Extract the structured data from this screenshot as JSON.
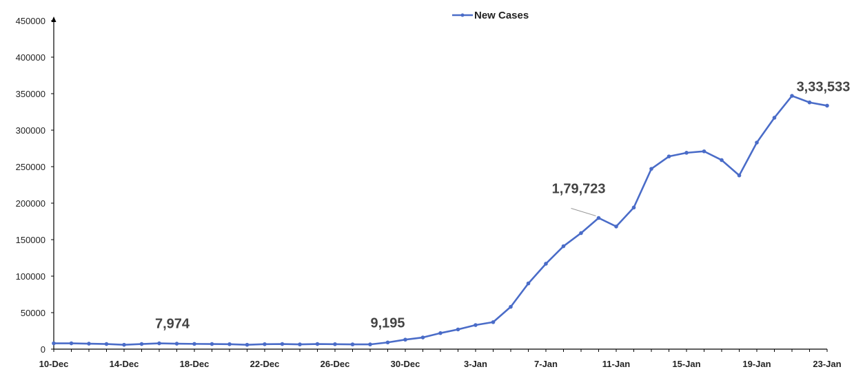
{
  "chart_data": {
    "type": "line",
    "title": "",
    "xlabel": "",
    "ylabel": "",
    "ylim": [
      0,
      450000
    ],
    "yticks": [
      "0",
      "50000",
      "100000",
      "150000",
      "200000",
      "250000",
      "300000",
      "350000",
      "400000",
      "450000"
    ],
    "xtick_labels": [
      "10-Dec",
      "14-Dec",
      "18-Dec",
      "22-Dec",
      "26-Dec",
      "30-Dec",
      "3-Jan",
      "7-Jan",
      "11-Jan",
      "15-Jan",
      "19-Jan",
      "23-Jan"
    ],
    "legend": {
      "position": "top-center",
      "label": "New Cases"
    },
    "grid": false,
    "x": [
      "10-Dec",
      "11-Dec",
      "12-Dec",
      "13-Dec",
      "14-Dec",
      "15-Dec",
      "16-Dec",
      "17-Dec",
      "18-Dec",
      "19-Dec",
      "20-Dec",
      "21-Dec",
      "22-Dec",
      "23-Dec",
      "24-Dec",
      "25-Dec",
      "26-Dec",
      "27-Dec",
      "28-Dec",
      "29-Dec",
      "30-Dec",
      "31-Dec",
      "1-Jan",
      "2-Jan",
      "3-Jan",
      "4-Jan",
      "5-Jan",
      "6-Jan",
      "7-Jan",
      "8-Jan",
      "9-Jan",
      "10-Jan",
      "11-Jan",
      "12-Jan",
      "13-Jan",
      "14-Jan",
      "15-Jan",
      "16-Jan",
      "17-Jan",
      "18-Jan",
      "19-Jan",
      "20-Jan",
      "21-Jan",
      "22-Jan",
      "23-Jan"
    ],
    "series": [
      {
        "name": "New Cases",
        "color": "#4a6cc8",
        "values": [
          8000,
          8000,
          7500,
          7000,
          6000,
          7000,
          7974,
          7500,
          7200,
          7000,
          6800,
          6000,
          6800,
          7000,
          6500,
          7000,
          6800,
          6500,
          6500,
          9195,
          13000,
          16000,
          22000,
          27000,
          33000,
          37000,
          58000,
          90000,
          117000,
          141000,
          159000,
          179723,
          168000,
          194000,
          247000,
          264000,
          269000,
          271000,
          259000,
          238000,
          283000,
          317000,
          347000,
          338000,
          333533
        ]
      }
    ],
    "annotations": [
      {
        "text": "7,974",
        "x": "16-Dec"
      },
      {
        "text": "9,195",
        "x": "29-Dec"
      },
      {
        "text": "1,79,723",
        "x": "10-Jan"
      },
      {
        "text": "3,33,533",
        "x": "22-Jan"
      }
    ]
  }
}
